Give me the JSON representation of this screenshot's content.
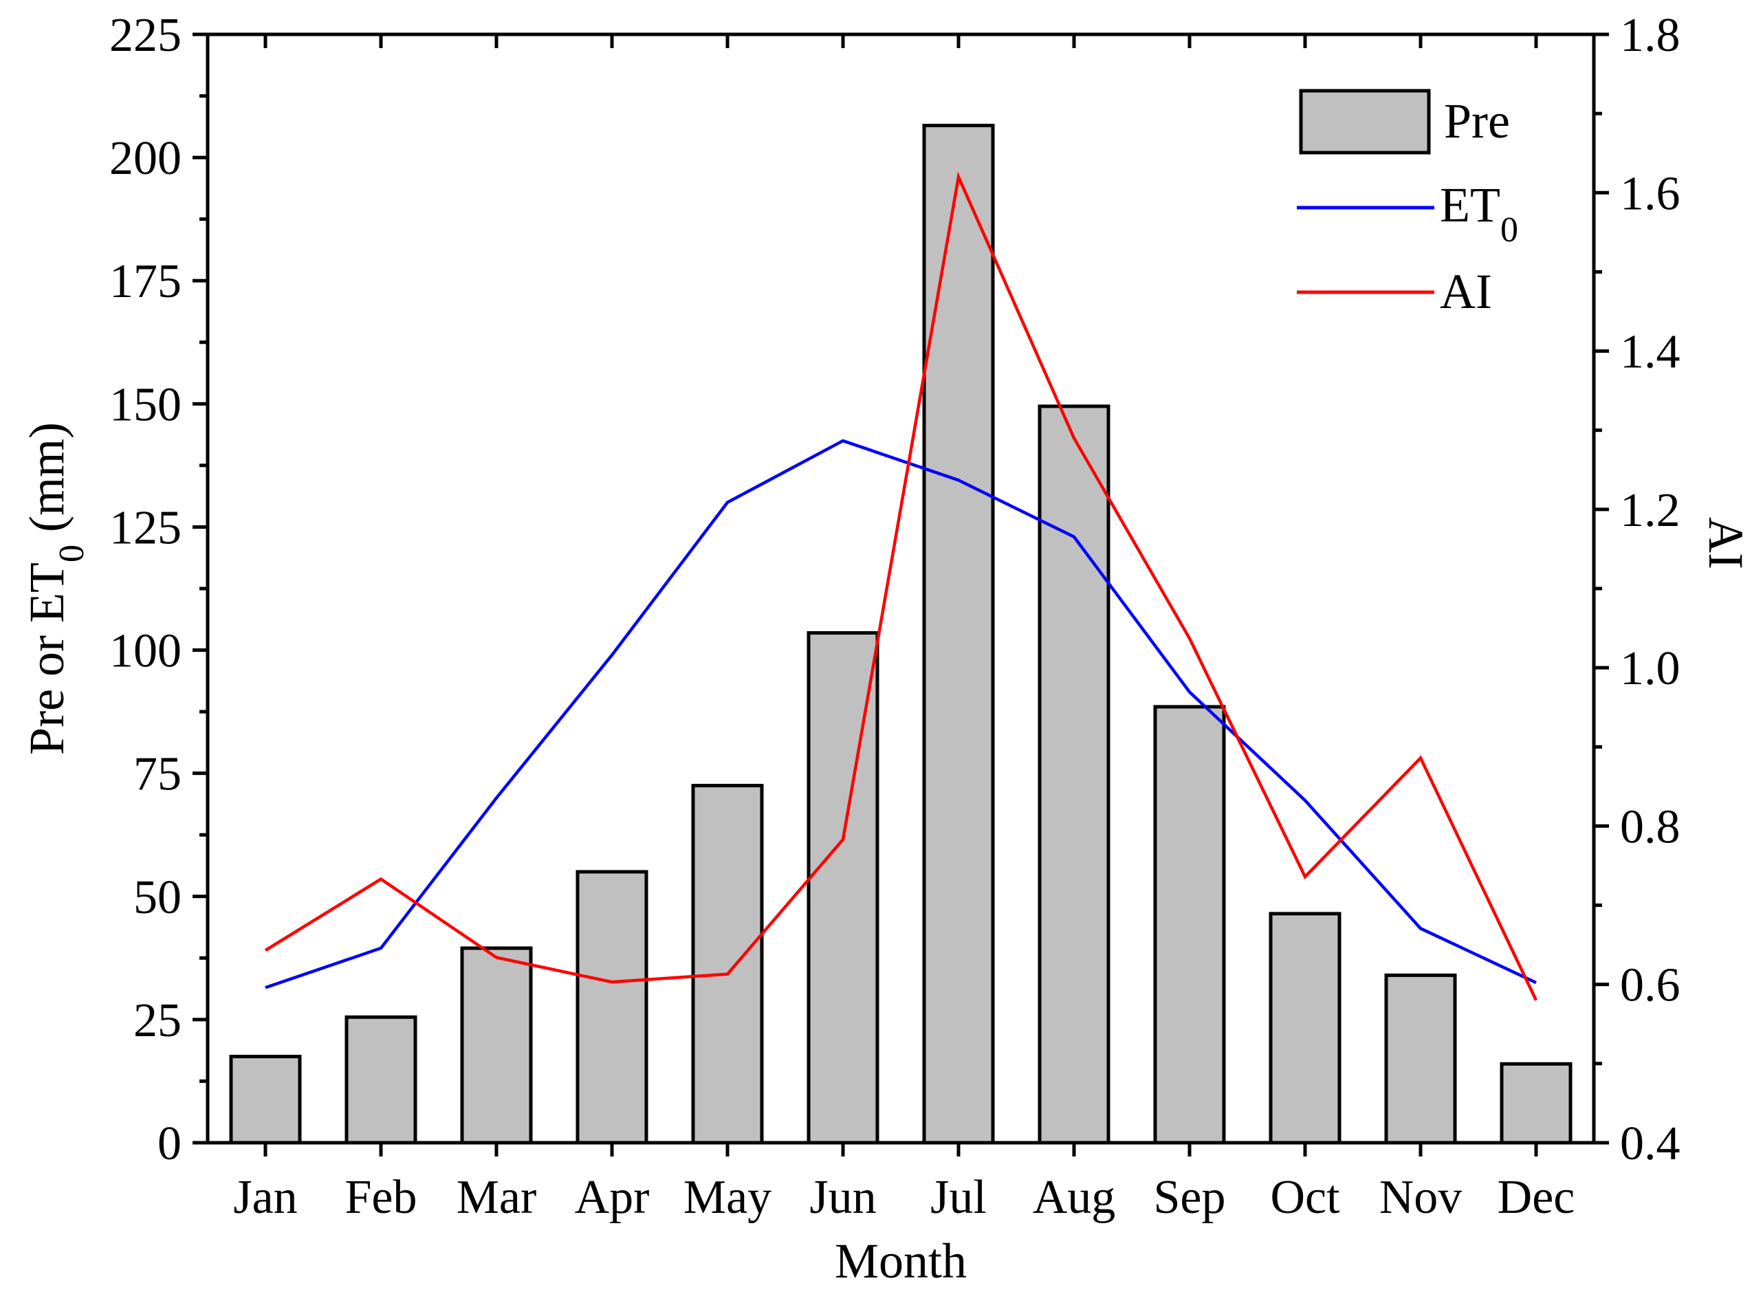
{
  "chart_data": {
    "type": "bar",
    "categories": [
      "Jan",
      "Feb",
      "Mar",
      "Apr",
      "May",
      "Jun",
      "Jul",
      "Aug",
      "Sep",
      "Oct",
      "Nov",
      "Dec"
    ],
    "series": [
      {
        "name": "Pre",
        "axis": "left",
        "kind": "bar",
        "values": [
          17.5,
          25.5,
          39.5,
          55,
          72.5,
          103.5,
          206.5,
          149.5,
          88.5,
          46.5,
          34,
          16
        ]
      },
      {
        "name": "ET0",
        "axis": "left",
        "kind": "line",
        "values": [
          31.5,
          39.5,
          70,
          99,
          130,
          142.5,
          134.5,
          123,
          91.5,
          69.5,
          43.5,
          32.5
        ]
      },
      {
        "name": "AI",
        "axis": "right",
        "kind": "line",
        "values": [
          0.643,
          0.733,
          0.634,
          0.603,
          0.613,
          0.783,
          1.62,
          1.29,
          1.037,
          0.736,
          0.886,
          0.58
        ]
      }
    ],
    "xlabel": "Month",
    "ylabel": {
      "prefix": "Pre or ET",
      "sub": "0",
      "suffix": " (mm)"
    },
    "y2label": "AI",
    "ylim": [
      0,
      225
    ],
    "y2lim": [
      0.4,
      1.8
    ],
    "yticks": [
      0,
      25,
      50,
      75,
      100,
      125,
      150,
      175,
      200,
      225
    ],
    "y2ticks": [
      "0.4",
      "0.6",
      "0.8",
      "1.0",
      "1.2",
      "1.4",
      "1.6",
      "1.8"
    ],
    "legend": {
      "position": "top-right",
      "items": [
        {
          "label": "Pre",
          "sub": ""
        },
        {
          "label": "ET",
          "sub": "0"
        },
        {
          "label": "AI",
          "sub": ""
        }
      ]
    },
    "colors": {
      "bar_fill": "#c0c0c0",
      "bar_stroke": "#000000",
      "et0": "#0000ff",
      "ai": "#ff0000"
    }
  }
}
